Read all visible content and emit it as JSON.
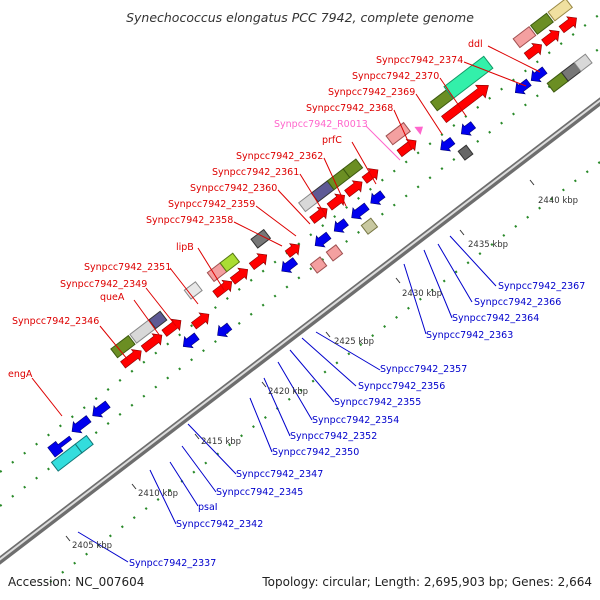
{
  "title": "Synechococcus elongatus PCC 7942, complete genome",
  "footer": {
    "accession": "Accession: NC_007604",
    "summary": "Topology: circular; Length: 2,695,903 bp; Genes: 2,664"
  },
  "colors": {
    "forward_label": "#dd0000",
    "reverse_label": "#0000cc",
    "rna_label": "#ff66cc",
    "backbone": "#999999",
    "dots": "#2a8a2a"
  },
  "ticks": [
    {
      "text": "2405 kbp"
    },
    {
      "text": "2410 kbp"
    },
    {
      "text": "2415 kbp"
    },
    {
      "text": "2420 kbp"
    },
    {
      "text": "2425 kbp"
    },
    {
      "text": "2430 kbp"
    },
    {
      "text": "2435 kbp"
    },
    {
      "text": "2440 kbp"
    }
  ],
  "forward_labels": [
    {
      "text": "engA"
    },
    {
      "text": "Synpcc7942_2346"
    },
    {
      "text": "queA"
    },
    {
      "text": "Synpcc7942_2349"
    },
    {
      "text": "Synpcc7942_2351"
    },
    {
      "text": "lipB"
    },
    {
      "text": "Synpcc7942_2358"
    },
    {
      "text": "Synpcc7942_2359"
    },
    {
      "text": "Synpcc7942_2360"
    },
    {
      "text": "Synpcc7942_2361"
    },
    {
      "text": "Synpcc7942_2362"
    },
    {
      "text": "prfC"
    },
    {
      "text": "Synpcc7942_R0013"
    },
    {
      "text": "Synpcc7942_2368"
    },
    {
      "text": "Synpcc7942_2369"
    },
    {
      "text": "Synpcc7942_2370"
    },
    {
      "text": "Synpcc7942_2374"
    },
    {
      "text": "ddl"
    }
  ],
  "reverse_labels": [
    {
      "text": "Synpcc7942_2337"
    },
    {
      "text": "Synpcc7942_2342"
    },
    {
      "text": "psaI"
    },
    {
      "text": "Synpcc7942_2345"
    },
    {
      "text": "Synpcc7942_2347"
    },
    {
      "text": "Synpcc7942_2350"
    },
    {
      "text": "Synpcc7942_2352"
    },
    {
      "text": "Synpcc7942_2354"
    },
    {
      "text": "Synpcc7942_2355"
    },
    {
      "text": "Synpcc7942_2356"
    },
    {
      "text": "Synpcc7942_2357"
    },
    {
      "text": "Synpcc7942_2363"
    },
    {
      "text": "Synpcc7942_2364"
    },
    {
      "text": "Synpcc7942_2366"
    },
    {
      "text": "Synpcc7942_2367"
    }
  ]
}
